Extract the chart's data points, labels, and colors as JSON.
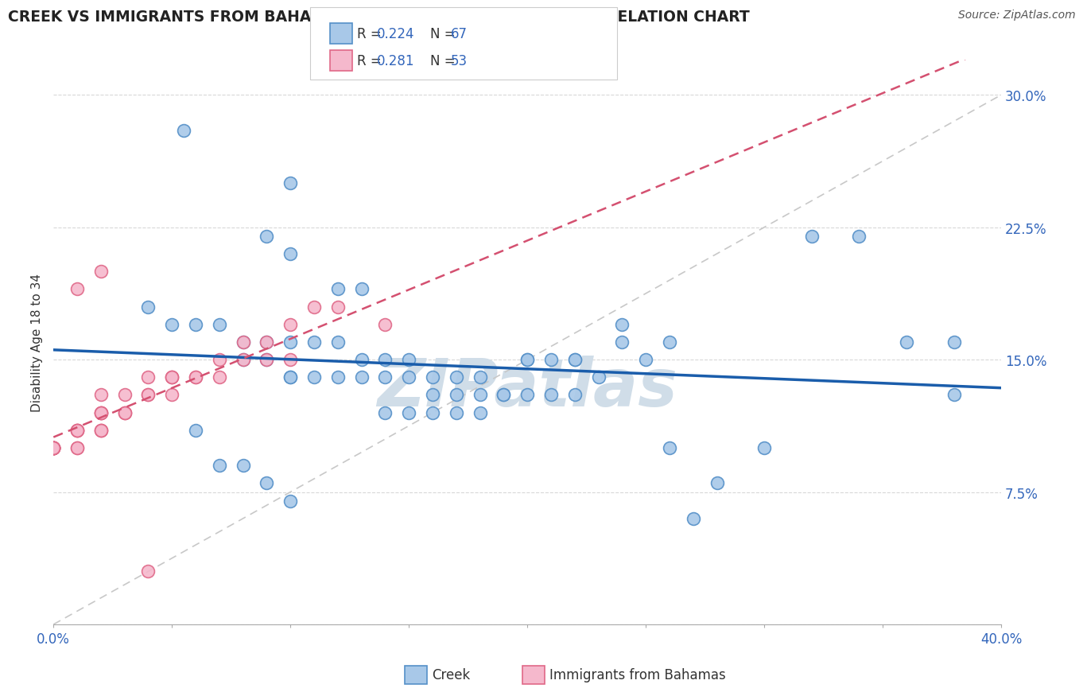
{
  "title": "CREEK VS IMMIGRANTS FROM BAHAMAS DISABILITY AGE 18 TO 34 CORRELATION CHART",
  "source": "Source: ZipAtlas.com",
  "ylabel": "Disability Age 18 to 34",
  "xlim": [
    0.0,
    0.4
  ],
  "ylim": [
    0.0,
    0.32
  ],
  "creek_color": "#a8c8e8",
  "bahamas_color": "#f5b8cc",
  "creek_edge_color": "#5590c8",
  "bahamas_edge_color": "#e06888",
  "trend_blue": "#1a5dab",
  "trend_pink": "#d45070",
  "ref_line_color": "#c8c8c8",
  "watermark": "ZIPatlas",
  "creek_x": [
    0.055,
    0.1,
    0.09,
    0.1,
    0.12,
    0.13,
    0.04,
    0.05,
    0.06,
    0.07,
    0.08,
    0.09,
    0.1,
    0.11,
    0.12,
    0.13,
    0.14,
    0.15,
    0.08,
    0.09,
    0.1,
    0.1,
    0.11,
    0.12,
    0.13,
    0.14,
    0.15,
    0.16,
    0.17,
    0.18,
    0.19,
    0.2,
    0.21,
    0.22,
    0.23,
    0.16,
    0.17,
    0.18,
    0.19,
    0.2,
    0.21,
    0.22,
    0.14,
    0.15,
    0.16,
    0.17,
    0.18,
    0.2,
    0.22,
    0.24,
    0.26,
    0.28,
    0.3,
    0.32,
    0.34,
    0.36,
    0.06,
    0.07,
    0.08,
    0.09,
    0.1,
    0.24,
    0.25,
    0.26,
    0.27,
    0.38,
    0.38
  ],
  "creek_y": [
    0.28,
    0.25,
    0.22,
    0.21,
    0.19,
    0.19,
    0.18,
    0.17,
    0.17,
    0.17,
    0.16,
    0.16,
    0.16,
    0.16,
    0.16,
    0.15,
    0.15,
    0.15,
    0.15,
    0.15,
    0.14,
    0.14,
    0.14,
    0.14,
    0.14,
    0.14,
    0.14,
    0.14,
    0.14,
    0.14,
    0.13,
    0.13,
    0.13,
    0.13,
    0.14,
    0.13,
    0.13,
    0.13,
    0.13,
    0.15,
    0.15,
    0.15,
    0.12,
    0.12,
    0.12,
    0.12,
    0.12,
    0.15,
    0.15,
    0.16,
    0.1,
    0.08,
    0.1,
    0.22,
    0.22,
    0.16,
    0.11,
    0.09,
    0.09,
    0.08,
    0.07,
    0.17,
    0.15,
    0.16,
    0.06,
    0.16,
    0.13
  ],
  "bahamas_x": [
    0.0,
    0.0,
    0.0,
    0.0,
    0.0,
    0.0,
    0.0,
    0.0,
    0.0,
    0.0,
    0.0,
    0.0,
    0.01,
    0.01,
    0.01,
    0.01,
    0.01,
    0.01,
    0.02,
    0.02,
    0.02,
    0.02,
    0.02,
    0.02,
    0.02,
    0.02,
    0.03,
    0.03,
    0.03,
    0.03,
    0.04,
    0.04,
    0.04,
    0.05,
    0.05,
    0.05,
    0.05,
    0.06,
    0.06,
    0.07,
    0.07,
    0.08,
    0.08,
    0.09,
    0.09,
    0.1,
    0.1,
    0.11,
    0.12,
    0.14,
    0.01,
    0.02,
    0.04
  ],
  "bahamas_y": [
    0.1,
    0.1,
    0.1,
    0.1,
    0.1,
    0.1,
    0.1,
    0.1,
    0.1,
    0.1,
    0.1,
    0.1,
    0.11,
    0.11,
    0.11,
    0.1,
    0.11,
    0.1,
    0.12,
    0.12,
    0.11,
    0.11,
    0.11,
    0.12,
    0.12,
    0.13,
    0.12,
    0.12,
    0.12,
    0.13,
    0.13,
    0.13,
    0.14,
    0.14,
    0.14,
    0.14,
    0.13,
    0.14,
    0.14,
    0.14,
    0.15,
    0.15,
    0.16,
    0.15,
    0.16,
    0.17,
    0.15,
    0.18,
    0.18,
    0.17,
    0.19,
    0.2,
    0.03
  ]
}
